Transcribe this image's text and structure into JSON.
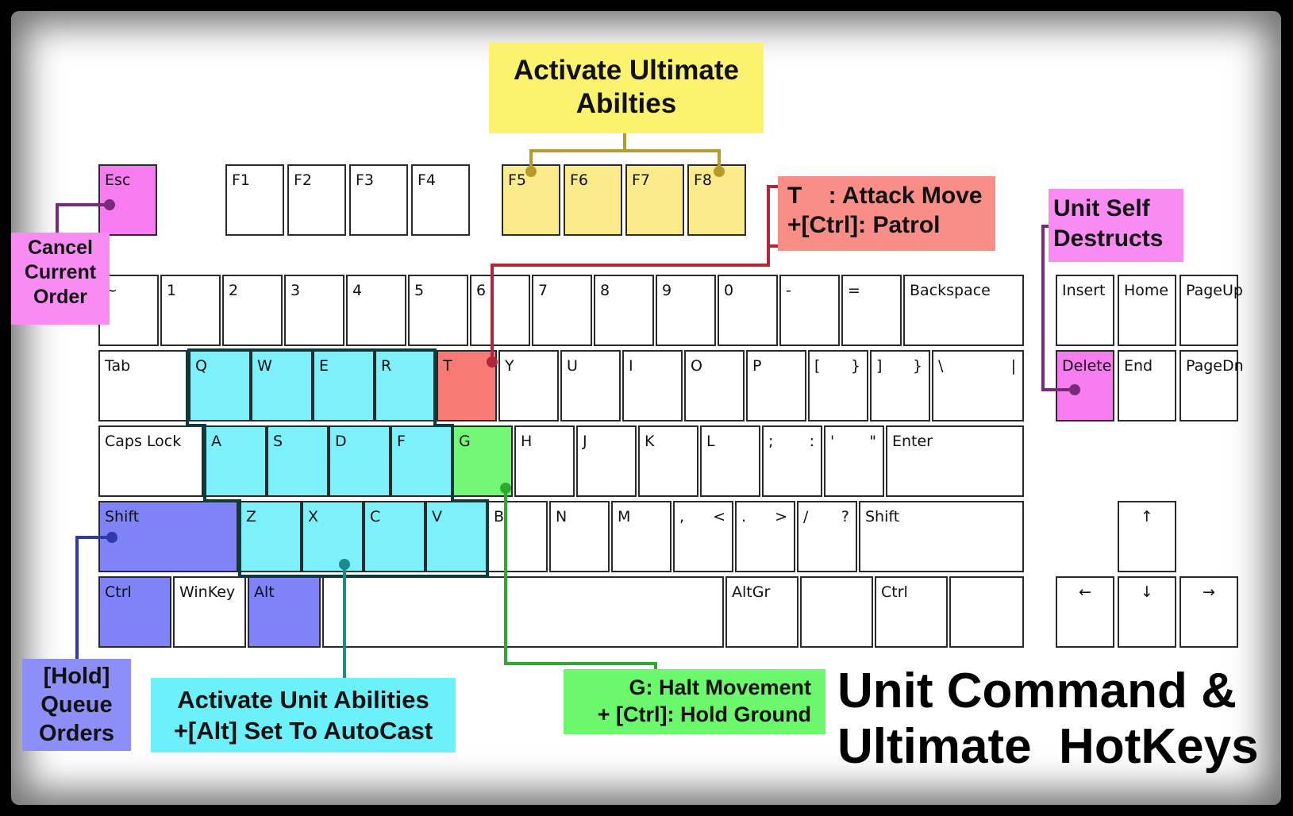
{
  "keyboard": {
    "rows": {
      "function": [
        {
          "id": "esc",
          "label": "Esc",
          "color": "pink"
        },
        {
          "id": "f1",
          "label": "F1"
        },
        {
          "id": "f2",
          "label": "F2"
        },
        {
          "id": "f3",
          "label": "F3"
        },
        {
          "id": "f4",
          "label": "F4"
        },
        {
          "id": "f5",
          "label": "F5",
          "color": "yellow"
        },
        {
          "id": "f6",
          "label": "F6",
          "color": "yellow"
        },
        {
          "id": "f7",
          "label": "F7",
          "color": "yellow"
        },
        {
          "id": "f8",
          "label": "F8",
          "color": "yellow"
        }
      ],
      "number": [
        {
          "id": "tilde",
          "label": "~"
        },
        {
          "id": "1",
          "label": "1"
        },
        {
          "id": "2",
          "label": "2"
        },
        {
          "id": "3",
          "label": "3"
        },
        {
          "id": "4",
          "label": "4"
        },
        {
          "id": "5",
          "label": "5"
        },
        {
          "id": "6",
          "label": "6"
        },
        {
          "id": "7",
          "label": "7"
        },
        {
          "id": "8",
          "label": "8"
        },
        {
          "id": "9",
          "label": "9"
        },
        {
          "id": "0",
          "label": "0"
        },
        {
          "id": "minus",
          "label": "-"
        },
        {
          "id": "equals",
          "label": "="
        },
        {
          "id": "backspace",
          "label": "Backspace"
        }
      ],
      "top": [
        {
          "id": "tab",
          "label": "Tab"
        },
        {
          "id": "q",
          "label": "Q",
          "color": "cyan"
        },
        {
          "id": "w",
          "label": "W",
          "color": "cyan"
        },
        {
          "id": "e",
          "label": "E",
          "color": "cyan"
        },
        {
          "id": "r",
          "label": "R",
          "color": "cyan"
        },
        {
          "id": "t",
          "label": "T",
          "color": "red"
        },
        {
          "id": "y",
          "label": "Y"
        },
        {
          "id": "u",
          "label": "U"
        },
        {
          "id": "i",
          "label": "I"
        },
        {
          "id": "o",
          "label": "O"
        },
        {
          "id": "p",
          "label": "P"
        },
        {
          "id": "lbracket",
          "label": "[",
          "alt": "}"
        },
        {
          "id": "rbracket",
          "label": "]",
          "alt": "}"
        },
        {
          "id": "backslash",
          "label": "\\",
          "alt": "|"
        }
      ],
      "home": [
        {
          "id": "capslock",
          "label": "Caps Lock"
        },
        {
          "id": "a",
          "label": "A",
          "color": "cyan"
        },
        {
          "id": "s",
          "label": "S",
          "color": "cyan"
        },
        {
          "id": "d",
          "label": "D",
          "color": "cyan"
        },
        {
          "id": "f",
          "label": "F",
          "color": "cyan"
        },
        {
          "id": "g",
          "label": "G",
          "color": "green"
        },
        {
          "id": "h",
          "label": "H"
        },
        {
          "id": "j",
          "label": "J"
        },
        {
          "id": "k",
          "label": "K"
        },
        {
          "id": "l",
          "label": "L"
        },
        {
          "id": "semicolon",
          "label": ";",
          "alt": ":"
        },
        {
          "id": "quote",
          "label": "'",
          "alt": "\""
        },
        {
          "id": "enter",
          "label": "Enter"
        }
      ],
      "bottom": [
        {
          "id": "lshift",
          "label": "Shift",
          "color": "blue"
        },
        {
          "id": "z",
          "label": "Z",
          "color": "cyan"
        },
        {
          "id": "x",
          "label": "X",
          "color": "cyan"
        },
        {
          "id": "c",
          "label": "C",
          "color": "cyan"
        },
        {
          "id": "v",
          "label": "V",
          "color": "cyan"
        },
        {
          "id": "b",
          "label": "B"
        },
        {
          "id": "n",
          "label": "N"
        },
        {
          "id": "m",
          "label": "M"
        },
        {
          "id": "comma",
          "label": ",",
          "alt": "<"
        },
        {
          "id": "period",
          "label": ".",
          "alt": ">"
        },
        {
          "id": "slash",
          "label": "/",
          "alt": "?"
        },
        {
          "id": "rshift",
          "label": "Shift"
        }
      ],
      "space": [
        {
          "id": "lctrl",
          "label": "Ctrl",
          "color": "blue"
        },
        {
          "id": "winkey",
          "label": "WinKey"
        },
        {
          "id": "alt",
          "label": "Alt",
          "color": "blue"
        },
        {
          "id": "spacebar",
          "label": ""
        },
        {
          "id": "altgr",
          "label": "AltGr"
        },
        {
          "id": "blank",
          "label": ""
        },
        {
          "id": "rctrl",
          "label": "Ctrl"
        },
        {
          "id": "blank2",
          "label": ""
        }
      ],
      "nav": [
        {
          "id": "insert",
          "label": "Insert"
        },
        {
          "id": "home",
          "label": "Home"
        },
        {
          "id": "pageup",
          "label": "PageUp"
        },
        {
          "id": "delete",
          "label": "Delete",
          "color": "pink"
        },
        {
          "id": "end",
          "label": "End"
        },
        {
          "id": "pagedn",
          "label": "PageDn"
        }
      ],
      "arrows": [
        {
          "id": "up",
          "label": "↑"
        },
        {
          "id": "left",
          "label": "←"
        },
        {
          "id": "down",
          "label": "↓"
        },
        {
          "id": "right",
          "label": "→"
        }
      ]
    }
  },
  "callouts": {
    "ultimate": [
      "Activate Ultimate",
      "Abilties"
    ],
    "cancel": [
      "Cancel",
      "Current",
      "Order"
    ],
    "attack": [
      "T    : Attack Move",
      "+[Ctrl]: Patrol"
    ],
    "destruct": [
      "Unit Self",
      "Destructs"
    ],
    "queue": [
      "[Hold]",
      "Queue",
      "Orders"
    ],
    "abilities": [
      "Activate Unit Abilities",
      "+[Alt] Set To AutoCast"
    ],
    "halt": [
      "G: Halt Movement",
      "+ [Ctrl]: Hold Ground"
    ]
  },
  "title": [
    "Unit Command &",
    "Ultimate  HotKeys"
  ],
  "colors": {
    "pink": "#f77cf0",
    "yellow": "#fbeb8a",
    "red": "#f77a74",
    "cyan": "#7cf0fb",
    "green": "#74f774",
    "blue": "#7e84f7",
    "callout_yellow": "#fbf36e",
    "callout_pink": "#f98cf2",
    "callout_red": "#f98e88",
    "callout_cyan": "#6cf0fa",
    "callout_green": "#6cf86c",
    "callout_blue": "#8e8ef8",
    "wire_purple": "#7a2a7a",
    "wire_olive": "#b79a2a",
    "wire_red": "#b2263a",
    "wire_teal": "#1f8a8a",
    "wire_green": "#2fa82f",
    "wire_navy": "#2f3aa8",
    "outline_teal": "#0b3b3b"
  }
}
